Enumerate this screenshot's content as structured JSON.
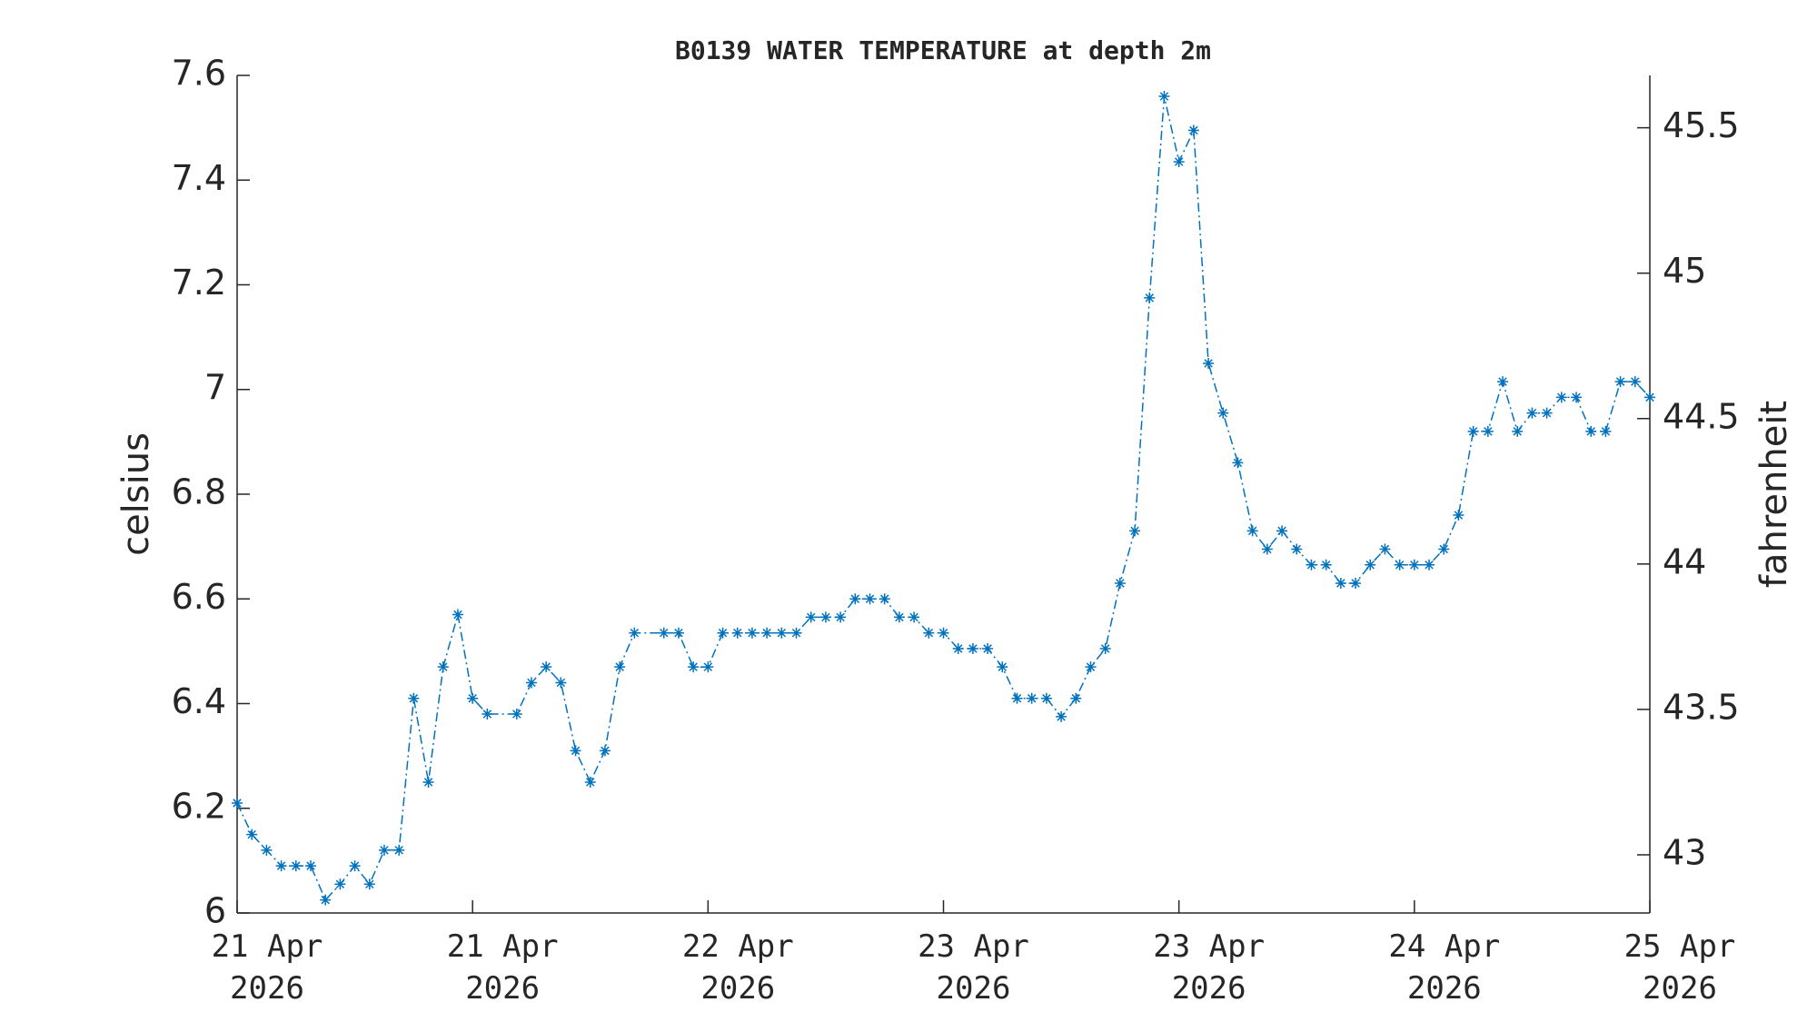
{
  "chart_data": {
    "type": "line",
    "title": "B0139 WATER TEMPERATURE at depth 2m",
    "ylabel": "celsius",
    "y2label": "fahrenheit",
    "x": [
      0,
      1,
      2,
      3,
      4,
      5,
      6,
      7,
      8,
      9,
      10,
      11,
      12,
      13,
      14,
      15,
      16,
      17,
      19,
      20,
      21,
      22,
      23,
      24,
      25,
      26,
      27,
      29,
      30,
      31,
      32,
      33,
      34,
      35,
      36,
      37,
      38,
      39,
      40,
      41,
      42,
      43,
      44,
      45,
      46,
      47,
      48,
      49,
      50,
      51,
      52,
      53,
      54,
      55,
      56,
      57,
      58,
      59,
      60,
      61,
      62,
      63,
      64,
      65,
      66,
      67,
      68,
      69,
      70,
      71,
      72,
      73,
      74,
      75,
      76,
      77,
      78,
      79,
      80,
      81,
      82,
      83,
      84,
      85,
      86,
      87,
      88,
      89,
      90,
      91,
      92,
      93,
      94,
      95,
      96
    ],
    "series": [
      {
        "name": "celsius",
        "color": "#0072bd",
        "marker": "asterisk",
        "line_style": "dashdot",
        "values": [
          6.21,
          6.15,
          6.12,
          6.09,
          6.09,
          6.09,
          6.025,
          6.055,
          6.09,
          6.055,
          6.12,
          6.12,
          6.41,
          6.25,
          6.47,
          6.57,
          6.41,
          6.38,
          6.38,
          6.44,
          6.47,
          6.44,
          6.31,
          6.25,
          6.31,
          6.47,
          6.535,
          6.535,
          6.535,
          6.47,
          6.47,
          6.535,
          6.535,
          6.535,
          6.535,
          6.535,
          6.535,
          6.565,
          6.565,
          6.565,
          6.6,
          6.6,
          6.6,
          6.565,
          6.565,
          6.535,
          6.535,
          6.505,
          6.505,
          6.505,
          6.47,
          6.41,
          6.41,
          6.41,
          6.375,
          6.41,
          6.47,
          6.505,
          6.63,
          6.73,
          7.175,
          7.56,
          7.435,
          7.495,
          7.05,
          6.955,
          6.86,
          6.73,
          6.695,
          6.73,
          6.695,
          6.665,
          6.665,
          6.63,
          6.63,
          6.665,
          6.695,
          6.665,
          6.665,
          6.665,
          6.695,
          6.76,
          6.92,
          6.92,
          7.015,
          6.92,
          6.955,
          6.955,
          6.985,
          6.985,
          6.92,
          6.92,
          7.015,
          7.015,
          6.985
        ]
      }
    ],
    "xlim": [
      0,
      96
    ],
    "xticks": [
      {
        "value": 0,
        "label": "21 Apr\n2026"
      },
      {
        "value": 16,
        "label": "21 Apr\n2026"
      },
      {
        "value": 32,
        "label": "22 Apr\n2026"
      },
      {
        "value": 48,
        "label": "23 Apr\n2026"
      },
      {
        "value": 64,
        "label": "23 Apr\n2026"
      },
      {
        "value": 80,
        "label": "24 Apr\n2026"
      },
      {
        "value": 96,
        "label": "25 Apr\n2026"
      }
    ],
    "ylim": [
      6,
      7.6
    ],
    "yticks": [
      6,
      6.2,
      6.4,
      6.6,
      6.8,
      7,
      7.2,
      7.4,
      7.6
    ],
    "y2lim": [
      42.8,
      45.68
    ],
    "y2ticks": [
      43,
      43.5,
      44,
      44.5,
      45,
      45.5
    ],
    "grid": false
  }
}
